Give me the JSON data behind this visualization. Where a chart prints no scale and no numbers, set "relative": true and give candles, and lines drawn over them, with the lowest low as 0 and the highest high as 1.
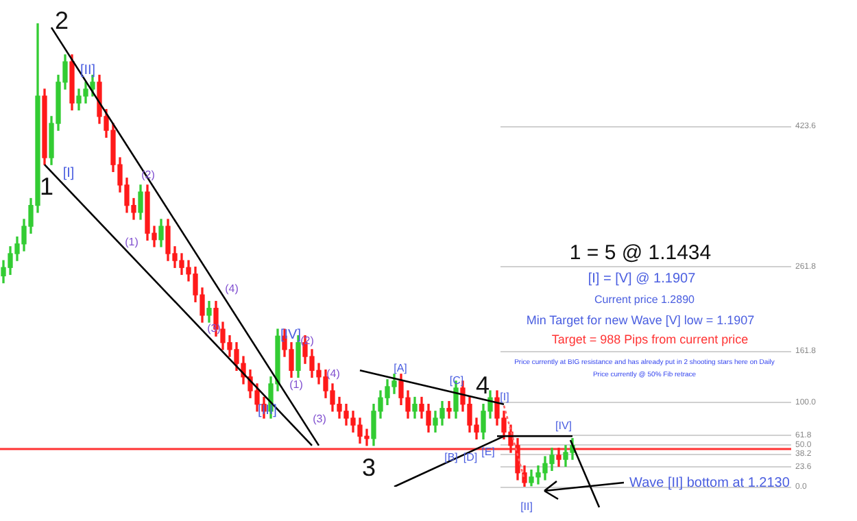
{
  "chart_data": {
    "type": "candlestick",
    "relative": true,
    "categories": [
      null,
      null,
      null,
      null,
      null,
      null,
      null,
      null,
      null,
      null,
      null,
      null,
      null,
      null,
      null,
      null,
      null,
      null,
      null,
      null,
      null,
      null,
      null,
      null,
      null,
      null,
      null,
      null,
      null,
      null,
      null,
      null,
      null,
      null,
      null,
      null,
      null,
      null,
      null,
      null,
      null,
      null,
      null,
      null,
      null,
      null,
      null,
      null,
      null,
      null,
      null,
      null,
      null,
      null,
      null,
      null,
      null,
      null,
      null,
      null,
      null,
      null,
      null,
      null,
      null,
      null,
      null,
      null,
      null,
      null,
      null,
      null,
      null,
      null,
      null,
      null,
      null,
      null,
      null,
      null,
      null,
      null,
      null,
      null
    ],
    "colors": [
      "#33cc33",
      "#33cc33",
      "#33cc33",
      "#33cc33",
      "#33cc33",
      "#33cc33",
      "#ff1a1a",
      "#33cc33",
      "#33cc33",
      "#33cc33",
      "#ff1a1a",
      "#33cc33",
      "#33cc33",
      "#33cc33",
      "#ff1a1a",
      "#ff1a1a",
      "#ff1a1a",
      "#ff1a1a",
      "#ff1a1a",
      "#ff1a1a",
      "#33cc33",
      "#ff1a1a",
      "#ff1a1a",
      "#33cc33",
      "#ff1a1a",
      "#ff1a1a",
      "#ff1a1a",
      "#ff1a1a",
      "#ff1a1a",
      "#ff1a1a",
      "#33cc33",
      "#ff1a1a",
      "#ff1a1a",
      "#ff1a1a",
      "#ff1a1a",
      "#ff1a1a",
      "#ff1a1a",
      "#ff1a1a",
      "#ff1a1a",
      "#33cc33",
      "#33cc33",
      "#ff1a1a",
      "#ff1a1a",
      "#33cc33",
      "#ff1a1a",
      "#ff1a1a",
      "#ff1a1a",
      "#ff1a1a",
      "#ff1a1a",
      "#ff1a1a",
      "#ff1a1a",
      "#ff1a1a",
      "#ff1a1a",
      "#ff1a1a",
      "#33cc33",
      "#33cc33",
      "#33cc33",
      "#33cc33",
      "#ff1a1a",
      "#ff1a1a",
      "#33cc33",
      "#ff1a1a",
      "#ff1a1a",
      "#33cc33",
      "#33cc33",
      "#ff1a1a",
      "#33cc33",
      "#ff1a1a",
      "#ff1a1a",
      "#ff1a1a",
      "#33cc33",
      "#33cc33",
      "#ff1a1a",
      "#ff1a1a",
      "#ff1a1a",
      "#ff1a1a",
      "#ff1a1a",
      "#33cc33",
      "#33cc33",
      "#33cc33",
      "#33cc33",
      "#ff1a1a",
      "#33cc33",
      "#33cc33"
    ],
    "ohlc": [
      [
        0.455,
        0.488,
        0.44,
        0.473
      ],
      [
        0.473,
        0.518,
        0.458,
        0.503
      ],
      [
        0.503,
        0.539,
        0.488,
        0.524
      ],
      [
        0.524,
        0.577,
        0.509,
        0.562
      ],
      [
        0.562,
        0.622,
        0.547,
        0.607
      ],
      [
        0.607,
        1.0,
        0.592,
        0.843
      ],
      [
        0.843,
        0.858,
        0.695,
        0.71
      ],
      [
        0.71,
        0.799,
        0.695,
        0.784
      ],
      [
        0.784,
        0.888,
        0.769,
        0.873
      ],
      [
        0.873,
        0.932,
        0.858,
        0.917
      ],
      [
        0.917,
        0.932,
        0.813,
        0.828
      ],
      [
        0.828,
        0.858,
        0.813,
        0.843
      ],
      [
        0.843,
        0.873,
        0.828,
        0.858
      ],
      [
        0.858,
        0.888,
        0.843,
        0.873
      ],
      [
        0.873,
        0.888,
        0.784,
        0.799
      ],
      [
        0.799,
        0.814,
        0.754,
        0.769
      ],
      [
        0.769,
        0.784,
        0.68,
        0.695
      ],
      [
        0.695,
        0.71,
        0.636,
        0.651
      ],
      [
        0.651,
        0.666,
        0.592,
        0.607
      ],
      [
        0.607,
        0.622,
        0.577,
        0.592
      ],
      [
        0.592,
        0.651,
        0.577,
        0.636
      ],
      [
        0.636,
        0.651,
        0.532,
        0.547
      ],
      [
        0.547,
        0.562,
        0.518,
        0.533
      ],
      [
        0.533,
        0.577,
        0.518,
        0.562
      ],
      [
        0.562,
        0.577,
        0.488,
        0.503
      ],
      [
        0.503,
        0.518,
        0.473,
        0.488
      ],
      [
        0.488,
        0.503,
        0.458,
        0.473
      ],
      [
        0.473,
        0.488,
        0.444,
        0.459
      ],
      [
        0.459,
        0.474,
        0.399,
        0.414
      ],
      [
        0.414,
        0.429,
        0.355,
        0.37
      ],
      [
        0.37,
        0.4,
        0.355,
        0.385
      ],
      [
        0.385,
        0.4,
        0.325,
        0.34
      ],
      [
        0.34,
        0.355,
        0.296,
        0.311
      ],
      [
        0.311,
        0.326,
        0.281,
        0.296
      ],
      [
        0.296,
        0.311,
        0.251,
        0.266
      ],
      [
        0.266,
        0.281,
        0.222,
        0.237
      ],
      [
        0.237,
        0.252,
        0.192,
        0.207
      ],
      [
        0.207,
        0.222,
        0.163,
        0.178
      ],
      [
        0.178,
        0.193,
        0.148,
        0.163
      ],
      [
        0.163,
        0.237,
        0.148,
        0.222
      ],
      [
        0.222,
        0.34,
        0.207,
        0.325
      ],
      [
        0.325,
        0.34,
        0.281,
        0.296
      ],
      [
        0.296,
        0.311,
        0.236,
        0.251
      ],
      [
        0.251,
        0.326,
        0.236,
        0.311
      ],
      [
        0.311,
        0.326,
        0.266,
        0.281
      ],
      [
        0.281,
        0.296,
        0.236,
        0.251
      ],
      [
        0.251,
        0.266,
        0.222,
        0.237
      ],
      [
        0.237,
        0.252,
        0.192,
        0.207
      ],
      [
        0.207,
        0.222,
        0.163,
        0.178
      ],
      [
        0.178,
        0.193,
        0.148,
        0.163
      ],
      [
        0.163,
        0.178,
        0.133,
        0.148
      ],
      [
        0.148,
        0.163,
        0.118,
        0.133
      ],
      [
        0.133,
        0.148,
        0.094,
        0.109
      ],
      [
        0.109,
        0.124,
        0.089,
        0.104
      ],
      [
        0.104,
        0.178,
        0.089,
        0.163
      ],
      [
        0.163,
        0.207,
        0.148,
        0.192
      ],
      [
        0.192,
        0.231,
        0.177,
        0.216
      ],
      [
        0.216,
        0.243,
        0.201,
        0.228
      ],
      [
        0.228,
        0.243,
        0.177,
        0.192
      ],
      [
        0.192,
        0.207,
        0.148,
        0.163
      ],
      [
        0.163,
        0.193,
        0.148,
        0.178
      ],
      [
        0.178,
        0.193,
        0.148,
        0.163
      ],
      [
        0.163,
        0.178,
        0.118,
        0.133
      ],
      [
        0.133,
        0.163,
        0.118,
        0.148
      ],
      [
        0.148,
        0.184,
        0.133,
        0.169
      ],
      [
        0.169,
        0.184,
        0.148,
        0.163
      ],
      [
        0.163,
        0.228,
        0.148,
        0.213
      ],
      [
        0.213,
        0.228,
        0.163,
        0.178
      ],
      [
        0.178,
        0.193,
        0.118,
        0.133
      ],
      [
        0.133,
        0.148,
        0.103,
        0.118
      ],
      [
        0.118,
        0.178,
        0.103,
        0.163
      ],
      [
        0.163,
        0.207,
        0.148,
        0.192
      ],
      [
        0.192,
        0.207,
        0.133,
        0.148
      ],
      [
        0.148,
        0.163,
        0.103,
        0.118
      ],
      [
        0.118,
        0.133,
        0.074,
        0.089
      ],
      [
        0.089,
        0.104,
        0.015,
        0.03
      ],
      [
        0.03,
        0.045,
        0,
        0.009
      ],
      [
        0.009,
        0.036,
        0.002,
        0.021
      ],
      [
        0.021,
        0.045,
        0.006,
        0.03
      ],
      [
        0.03,
        0.065,
        0.015,
        0.05
      ],
      [
        0.05,
        0.083,
        0.035,
        0.068
      ],
      [
        0.068,
        0.083,
        0.044,
        0.059
      ],
      [
        0.059,
        0.089,
        0.044,
        0.074
      ],
      [
        0.074,
        0.104,
        0.059,
        0.089
      ]
    ],
    "series": [
      {
        "type": "line",
        "color": "#000000",
        "values": [
          null,
          null,
          null,
          null,
          null,
          null,
          null,
          0.991,
          null,
          null,
          null,
          null,
          null,
          null,
          null,
          null,
          null,
          null,
          null,
          null,
          null,
          null,
          null,
          null,
          null,
          null,
          null,
          null,
          null,
          null,
          null,
          null,
          null,
          null,
          null,
          null,
          null,
          null,
          null,
          null,
          null,
          null,
          null,
          null,
          null,
          null,
          0.089,
          null,
          null,
          null,
          null,
          null,
          null,
          null,
          null,
          null,
          null,
          null,
          null,
          null,
          null,
          null,
          null,
          null,
          null,
          null,
          null,
          null,
          null,
          null,
          null,
          null,
          null,
          null,
          null,
          null,
          null,
          null,
          null,
          null,
          null,
          null,
          null,
          null
        ]
      },
      {
        "type": "line",
        "color": "#000000",
        "values": [
          null,
          null,
          null,
          null,
          null,
          null,
          0.695,
          null,
          null,
          null,
          null,
          null,
          null,
          null,
          null,
          null,
          null,
          null,
          null,
          null,
          null,
          null,
          null,
          null,
          null,
          null,
          null,
          null,
          null,
          null,
          null,
          null,
          null,
          null,
          null,
          null,
          null,
          null,
          null,
          null,
          null,
          null,
          null,
          null,
          null,
          0.089,
          null,
          null,
          null,
          null,
          null,
          null,
          null,
          null,
          null,
          null,
          null,
          null,
          null,
          null,
          null,
          null,
          null,
          null,
          null,
          null,
          null,
          null,
          null,
          null,
          null,
          null,
          null,
          null,
          null,
          null,
          null,
          null,
          null,
          null,
          null,
          null,
          null,
          null
        ]
      },
      {
        "type": "line",
        "color": "#000000",
        "values": [
          null,
          null,
          null,
          null,
          null,
          null,
          null,
          null,
          null,
          null,
          null,
          null,
          null,
          null,
          null,
          null,
          null,
          null,
          null,
          null,
          null,
          null,
          null,
          null,
          null,
          null,
          null,
          null,
          null,
          null,
          null,
          null,
          null,
          null,
          null,
          null,
          null,
          null,
          null,
          null,
          null,
          null,
          null,
          null,
          null,
          null,
          null,
          null,
          null,
          null,
          null,
          null,
          0.251,
          null,
          null,
          null,
          null,
          null,
          null,
          null,
          null,
          null,
          null,
          null,
          null,
          null,
          null,
          null,
          null,
          null,
          null,
          null,
          null,
          0.178,
          null,
          null,
          null,
          null,
          null,
          null,
          null,
          null,
          null,
          null
        ]
      },
      {
        "type": "line",
        "color": "#000000",
        "values": [
          null,
          null,
          null,
          null,
          null,
          null,
          null,
          null,
          null,
          null,
          null,
          null,
          null,
          null,
          null,
          null,
          null,
          null,
          null,
          null,
          null,
          null,
          null,
          null,
          null,
          null,
          null,
          null,
          null,
          null,
          null,
          null,
          null,
          null,
          null,
          null,
          null,
          null,
          null,
          null,
          null,
          null,
          null,
          null,
          null,
          null,
          null,
          null,
          null,
          null,
          null,
          null,
          null,
          null,
          null,
          null,
          null,
          0,
          null,
          null,
          null,
          null,
          null,
          null,
          null,
          null,
          null,
          null,
          null,
          null,
          null,
          null,
          null,
          0.109,
          null,
          null,
          null,
          null,
          null,
          null,
          null,
          null,
          null,
          null
        ]
      },
      {
        "type": "line",
        "color": "#000000",
        "values": [
          null,
          null,
          null,
          null,
          null,
          null,
          null,
          null,
          null,
          null,
          null,
          null,
          null,
          null,
          null,
          null,
          null,
          null,
          null,
          null,
          null,
          null,
          null,
          null,
          null,
          null,
          null,
          null,
          null,
          null,
          null,
          null,
          null,
          null,
          null,
          null,
          null,
          null,
          null,
          null,
          null,
          null,
          null,
          null,
          null,
          null,
          null,
          null,
          null,
          null,
          null,
          null,
          null,
          null,
          null,
          null,
          null,
          null,
          null,
          null,
          null,
          null,
          null,
          null,
          null,
          null,
          null,
          null,
          null,
          null,
          null,
          null,
          0.109,
          null,
          null,
          null,
          null,
          null,
          null,
          null,
          null,
          null,
          null,
          0.109
        ]
      },
      {
        "type": "line",
        "color": "#ff6666",
        "line_style": "dotted",
        "values": [
          null,
          null,
          null,
          null,
          null,
          null,
          null,
          null,
          null,
          null,
          null,
          null,
          null,
          null,
          null,
          null,
          null,
          null,
          null,
          null,
          null,
          null,
          null,
          null,
          null,
          null,
          null,
          null,
          null,
          null,
          null,
          null,
          null,
          null,
          null,
          null,
          null,
          null,
          null,
          null,
          null,
          null,
          null,
          null,
          null,
          null,
          null,
          null,
          null,
          null,
          null,
          null,
          null,
          null,
          null,
          null,
          null,
          null,
          null,
          null,
          null,
          null,
          null,
          null,
          null,
          null,
          null,
          null,
          null,
          null,
          null,
          null,
          null,
          0.175,
          null,
          null,
          0.015,
          null,
          null,
          null,
          null,
          null,
          null,
          null
        ]
      }
    ],
    "ref_lines": [
      {
        "axis": "y",
        "value": 0.082,
        "color": "#ff3333"
      },
      {
        "axis": "y",
        "value": 0,
        "color": "#d0d0d0"
      },
      {
        "axis": "y",
        "value": 0.044,
        "color": "#d0d0d0"
      },
      {
        "axis": "y",
        "value": 0.071,
        "color": "#d0d0d0"
      },
      {
        "axis": "y",
        "value": 0.091,
        "color": "#d0d0d0"
      },
      {
        "axis": "y",
        "value": 0.112,
        "color": "#d0d0d0"
      },
      {
        "axis": "y",
        "value": 0.182,
        "color": "#d0d0d0"
      },
      {
        "axis": "y",
        "value": 0.294,
        "color": "#d0d0d0"
      },
      {
        "axis": "y",
        "value": 0.476,
        "color": "#d0d0d0"
      },
      {
        "axis": "y",
        "value": 0.779,
        "color": "#d0d0d0"
      }
    ],
    "annotations": [
      "1",
      "2",
      "3",
      "4",
      "[I]",
      "[II]",
      "[III]",
      "[IV]",
      "(1)",
      "(2)",
      "(3)",
      "(4)",
      "(1)",
      "(2)",
      "(3)",
      "(4)",
      "[A]",
      "[B]",
      "[C]",
      "[D]",
      "[E]",
      "[I]",
      "[II]",
      "[IV]",
      "1 = 5 @ 1.1434",
      "[I] = [V] @ 1.1907",
      "Current price 1.2890",
      "Min Target for new Wave [V] low = 1.1907",
      "Target = 988 Pips from current price",
      "Price currently at BIG resistance and has already put in 2 shooting stars here on Daily",
      "Price currently @ 50% Fib retrace",
      "Wave [II] bottom at 1.2130",
      "0.0",
      "23.6",
      "38.2",
      "50.0",
      "61.8",
      "100.0",
      "161.8",
      "261.8",
      "423.6"
    ]
  }
}
